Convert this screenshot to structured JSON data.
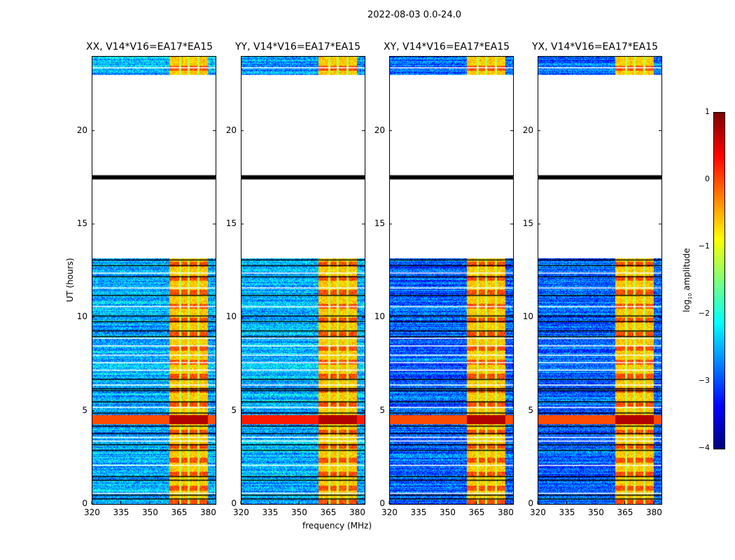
{
  "chart_data": {
    "type": "heatmap",
    "title": "2022-08-03 0.0-24.0",
    "xlabel": "frequency (MHz)",
    "ylabel": "UT (hours)",
    "xlim": [
      320,
      384
    ],
    "ylim": [
      0,
      24
    ],
    "xticks": [
      320,
      335,
      350,
      365,
      380
    ],
    "yticks": [
      0,
      5,
      10,
      15,
      20
    ],
    "panels": [
      {
        "title": "XX, V14*V16=EA17*EA15"
      },
      {
        "title": "YY, V14*V16=EA17*EA15"
      },
      {
        "title": "XY, V14*V16=EA17*EA15"
      },
      {
        "title": "YX, V14*V16=EA17*EA15"
      }
    ],
    "blank_ranges_hours": [
      [
        13.2,
        23.0
      ]
    ],
    "flagged_line_hours": [
      17.5
    ],
    "strong_rfi_hours": [
      4.3,
      4.8
    ],
    "bright_band_mhz": [
      360,
      380
    ],
    "colorbar": {
      "label": "log10 amplitude",
      "label_main": "log",
      "label_sub": "10",
      "label_rest": " amplitude",
      "range": [
        -4,
        1
      ],
      "ticks": [
        "1",
        "0",
        "−1",
        "−2",
        "−3",
        "−4"
      ],
      "colormap": "jet"
    }
  }
}
